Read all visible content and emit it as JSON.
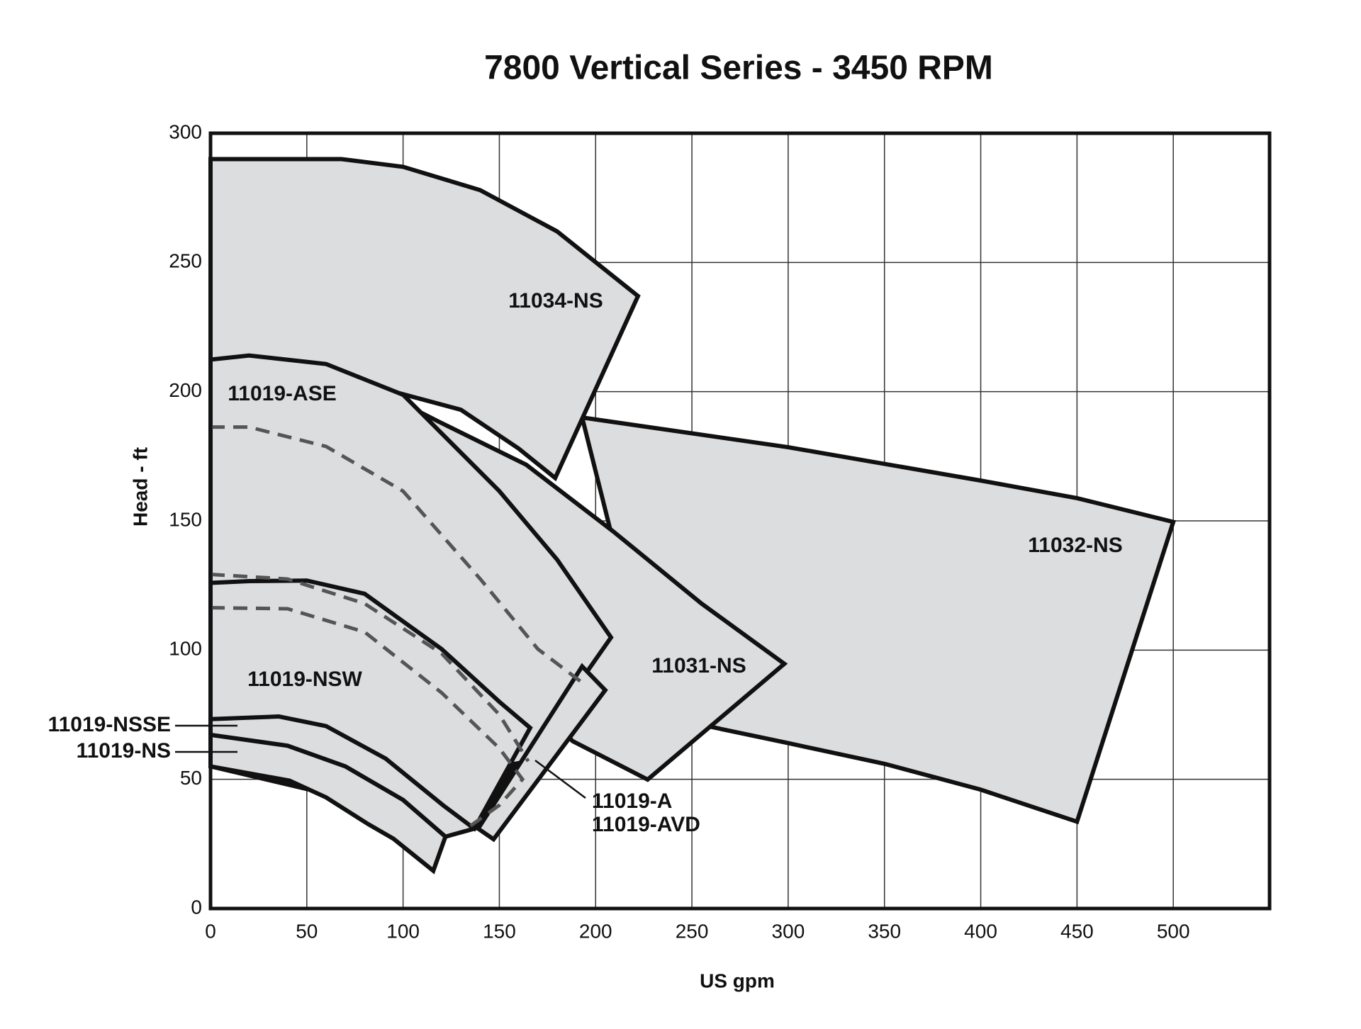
{
  "chart_data": {
    "type": "region",
    "title": "7800 Vertical Series - 3450 RPM",
    "x_label": "US gpm",
    "y_label": "Head - ft",
    "xlim": [
      0,
      550
    ],
    "ylim": [
      0,
      300
    ],
    "xticks": [
      0,
      50,
      100,
      150,
      200,
      250,
      300,
      350,
      400,
      450,
      500
    ],
    "yticks": [
      0,
      50,
      100,
      150,
      200,
      250,
      300
    ],
    "grid": true,
    "stroke_color": "#111111",
    "regions": [
      {
        "name": "11032-NS",
        "color": "#dcdddf",
        "x": [
          193,
          300,
          400,
          450,
          500,
          450,
          400,
          350,
          300,
          258,
          230,
          193
        ],
        "y": [
          190,
          178.5,
          165.6,
          158.8,
          149.6,
          33.6,
          46,
          56,
          64,
          70.6,
          80,
          190
        ]
      },
      {
        "name": "11031-NS",
        "color": "#dcdddf",
        "x": [
          80,
          118,
          164,
          209,
          255,
          298,
          227,
          188,
          170,
          207,
          150,
          80
        ],
        "y": [
          203,
          188.6,
          171.7,
          146,
          118,
          94.7,
          49.9,
          64.8,
          80,
          105,
          160,
          203
        ]
      },
      {
        "name": "11034-NS",
        "color": "#dcdddf",
        "x": [
          0,
          68,
          100,
          140,
          180,
          222,
          179,
          160,
          130,
          80,
          0
        ],
        "y": [
          290,
          290,
          287,
          278,
          262,
          237,
          166.6,
          178,
          193,
          203,
          212
        ]
      },
      {
        "name": "11019-ASE",
        "color": "#dcdddf",
        "x": [
          0,
          20,
          60,
          100,
          150,
          180,
          208,
          162,
          137,
          0
        ],
        "y": [
          212.4,
          214,
          210.7,
          198.8,
          161.5,
          135,
          104.9,
          56,
          31,
          55
        ]
      },
      {
        "name": "11019-A",
        "color": "#dcdddf",
        "x": [
          193,
          205,
          147,
          139
        ],
        "y": [
          93.7,
          84.5,
          26.8,
          30.9
        ]
      },
      {
        "name": "11019-AVD",
        "color": "#111111",
        "x": [
          152.5,
          160.3,
          143.4
        ],
        "y": [
          55.3,
          56.3,
          39.3
        ]
      },
      {
        "name": "11019-NSW",
        "color": "#dcdddf",
        "x": [
          0,
          20,
          50,
          80,
          120,
          150,
          166,
          137,
          100,
          50,
          0
        ],
        "y": [
          126,
          126.7,
          126.9,
          121.8,
          100.4,
          80,
          69.9,
          30.9,
          50,
          65,
          73
        ]
      },
      {
        "name": "11019-NSSE",
        "color": "#dcdddf",
        "x": [
          0,
          35.5,
          60,
          91,
          120.7,
          137,
          122,
          100,
          70,
          40,
          0
        ],
        "y": [
          73.3,
          74.3,
          70.6,
          58,
          40,
          30.9,
          27.8,
          42,
          55,
          63,
          67.2
        ]
      },
      {
        "name": "11019-NS",
        "color": "#dcdddf",
        "x": [
          0,
          40,
          70,
          100,
          122,
          115.7,
          95,
          82,
          60,
          41,
          0
        ],
        "y": [
          67.2,
          63,
          55,
          42,
          27.8,
          14.6,
          27,
          32.6,
          43,
          49.5,
          55
        ]
      }
    ],
    "lines": [
      {
        "color": "#555555",
        "x": [
          0,
          20,
          60,
          100,
          140,
          170,
          192
        ],
        "y": [
          186.3,
          186.3,
          178.8,
          161.5,
          127.6,
          100.4,
          88
        ]
      },
      {
        "color": "#555555",
        "x": [
          0,
          40,
          80,
          120,
          150,
          165
        ],
        "y": [
          129.3,
          127.5,
          118,
          98.7,
          75,
          57
        ]
      },
      {
        "color": "#555555",
        "x": [
          0,
          40,
          80,
          120,
          150,
          162,
          150,
          135
        ],
        "y": [
          116.4,
          116,
          107,
          83.5,
          62,
          50,
          40,
          32
        ]
      }
    ]
  }
}
